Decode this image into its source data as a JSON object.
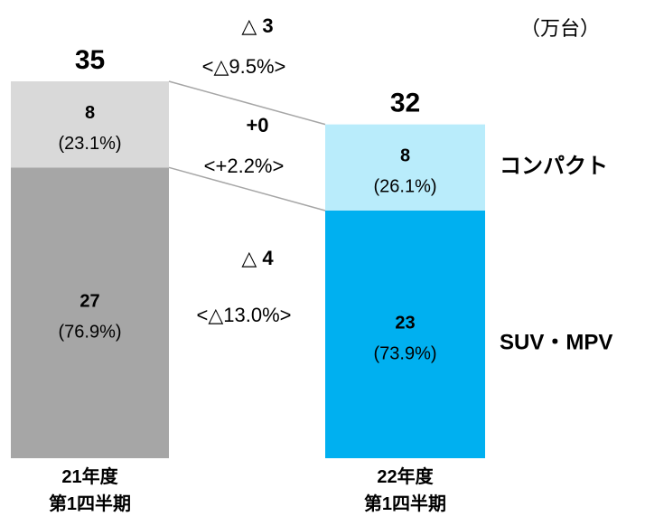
{
  "chart_data": {
    "type": "stacked_bar",
    "unit": "（万台）",
    "categories": [
      "21年度\n第1四半期",
      "22年度\n第1四半期"
    ],
    "series": [
      {
        "name": "SUV・MPV",
        "colors": [
          "#a6a6a6",
          "#00b0f0"
        ],
        "values": [
          27,
          23
        ],
        "share_labels": [
          "(76.9%)",
          "(73.9%)"
        ]
      },
      {
        "name": "コンパクト",
        "colors": [
          "#d9d9d9",
          "#b9ecfb"
        ],
        "values": [
          8,
          8
        ],
        "share_labels": [
          "(23.1%)",
          "(26.1%)"
        ]
      }
    ],
    "totals": [
      35,
      32
    ],
    "changes": [
      {
        "value": "△ 3",
        "rate": "<△9.5%>"
      },
      {
        "value": "+0",
        "rate": "<+2.2%>"
      },
      {
        "value": "△ 4",
        "rate": "<△13.0%>"
      }
    ],
    "ylim": [
      0,
      35
    ]
  }
}
